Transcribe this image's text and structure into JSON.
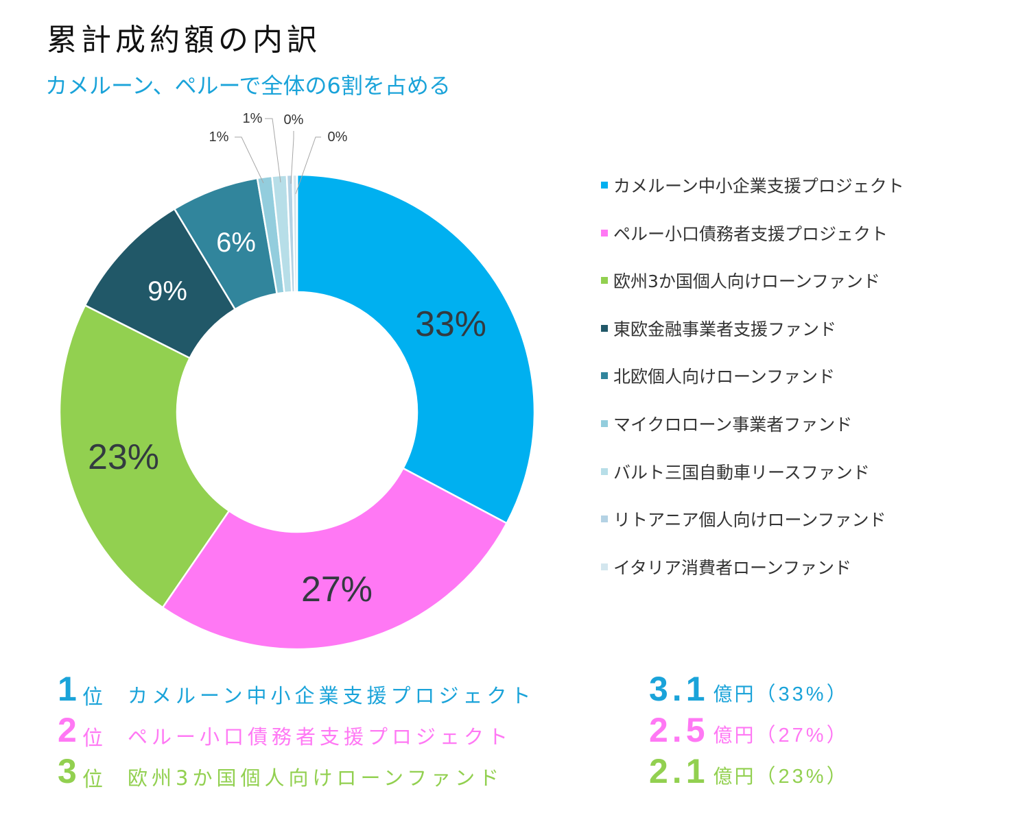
{
  "title": "累計成約額の内訳",
  "subtitle": "カメルーン、ペルーで全体の6割を占める",
  "chart_data": {
    "type": "pie",
    "style": "donut",
    "title": "累計成約額の内訳",
    "subtitle": "カメルーン、ペルーで全体の6割を占める",
    "legend_position": "right",
    "slices": [
      {
        "label": "カメルーン中小企業支援プロジェクト",
        "value": 33,
        "display": "33%",
        "color": "#00b0f0"
      },
      {
        "label": "ペルー小口債務者支援プロジェクト",
        "value": 27,
        "display": "27%",
        "color": "#ff78f4"
      },
      {
        "label": "欧州3か国個人向けローンファンド",
        "value": 23,
        "display": "23%",
        "color": "#92d050"
      },
      {
        "label": "東欧金融事業者支援ファンド",
        "value": 9,
        "display": "9%",
        "color": "#215868"
      },
      {
        "label": "北欧個人向けローンファンド",
        "value": 6,
        "display": "6%",
        "color": "#31859c"
      },
      {
        "label": "マイクロローン事業者ファンド",
        "value": 1,
        "display": "1%",
        "color": "#93cddd"
      },
      {
        "label": "バルト三国自動車リースファンド",
        "value": 1,
        "display": "1%",
        "color": "#b7dee8"
      },
      {
        "label": "リトアニア個人向けローンファンド",
        "value": 0.4,
        "display": "0%",
        "color": "#b4d2e4"
      },
      {
        "label": "イタリア消費者ローンファンド",
        "value": 0.3,
        "display": "0%",
        "color": "#d3e6ee"
      }
    ]
  },
  "ranking": [
    {
      "rank": "1",
      "suffix": "位",
      "name": "カメルーン中小企業支援プロジェクト",
      "amount": "3.1",
      "unit": "億円",
      "share": "（33%）",
      "color": "#1aa3d9"
    },
    {
      "rank": "2",
      "suffix": "位",
      "name": "ペルー小口債務者支援プロジェクト",
      "amount": "2.5",
      "unit": "億円",
      "share": "（27%）",
      "color": "#ff78f4"
    },
    {
      "rank": "3",
      "suffix": "位",
      "name": "欧州3か国個人向けローンファンド",
      "amount": "2.1",
      "unit": "億円",
      "share": "（23%）",
      "color": "#92d050"
    }
  ]
}
